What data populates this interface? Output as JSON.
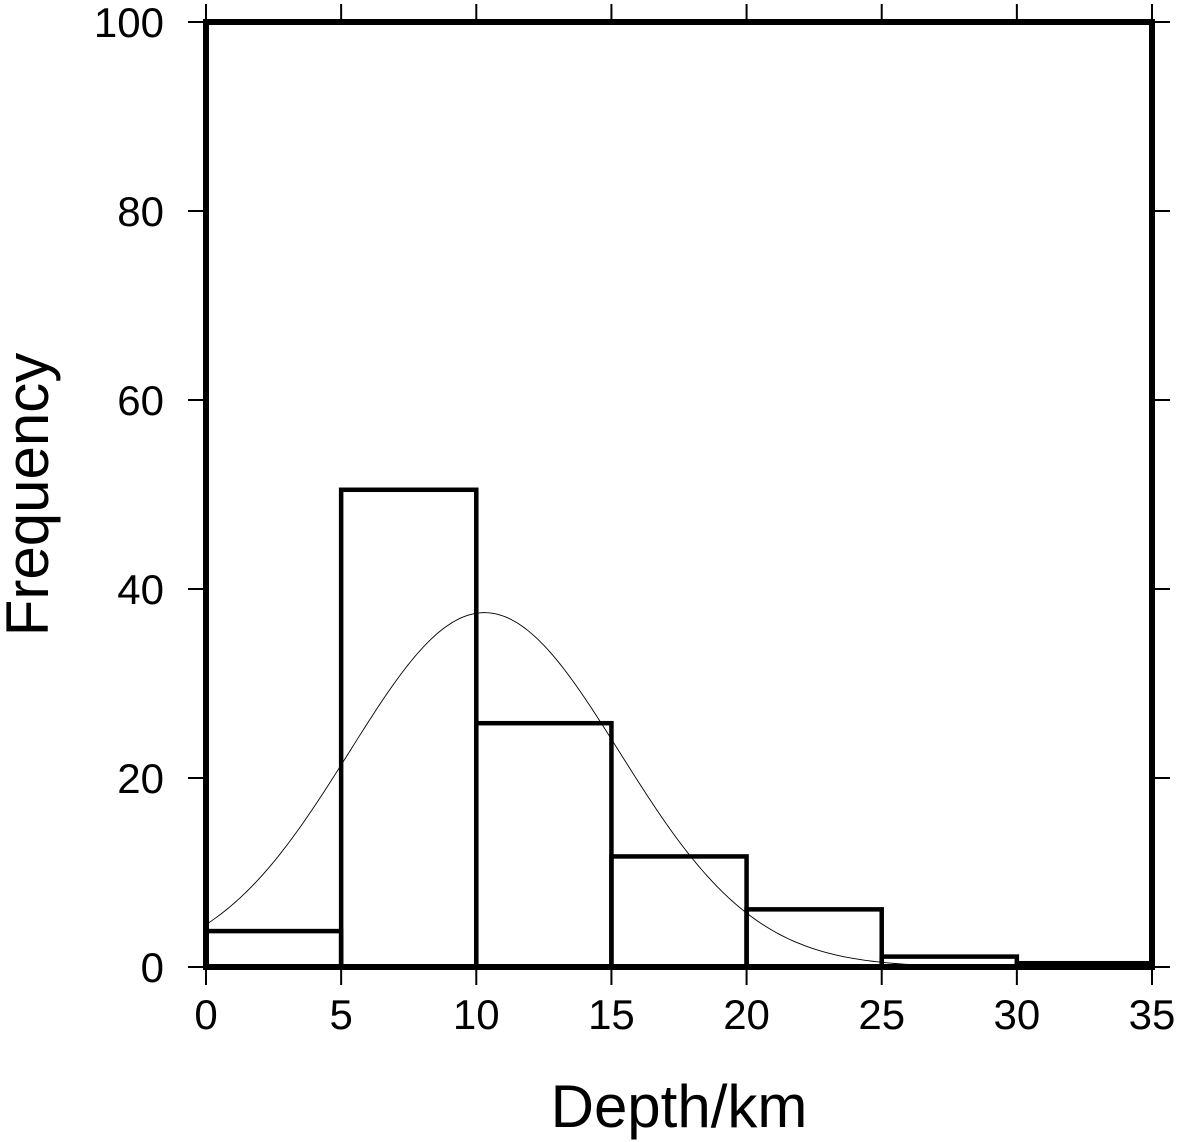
{
  "chart_data": {
    "type": "bar",
    "title": "",
    "xlabel": "Depth/km",
    "ylabel": "Frequency",
    "xlim": [
      0,
      35
    ],
    "ylim": [
      0,
      100
    ],
    "x_ticks": [
      0,
      5,
      10,
      15,
      20,
      25,
      30,
      35
    ],
    "y_ticks": [
      0,
      20,
      40,
      60,
      80,
      100
    ],
    "bins": [
      {
        "start": 0,
        "end": 5,
        "value": 3.8
      },
      {
        "start": 5,
        "end": 10,
        "value": 50.5
      },
      {
        "start": 10,
        "end": 15,
        "value": 25.8
      },
      {
        "start": 15,
        "end": 20,
        "value": 11.7
      },
      {
        "start": 20,
        "end": 25,
        "value": 6.1
      },
      {
        "start": 25,
        "end": 30,
        "value": 1.1
      },
      {
        "start": 30,
        "end": 35,
        "value": 0.4
      }
    ],
    "fit_curve": {
      "type": "normal",
      "mean": 10.3,
      "sd": 5.0,
      "peak": 37.5
    },
    "grid": false,
    "legend": "none"
  }
}
